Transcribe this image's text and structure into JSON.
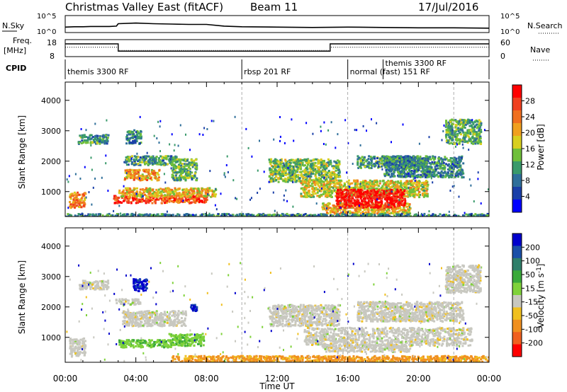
{
  "header": {
    "title": "Christmas Valley East (fitACF)",
    "beam": "Beam 11",
    "date": "17/Jul/2016"
  },
  "top_panels": {
    "nsky_label": "N.Sky",
    "nsky_ticks": [
      "10^5",
      "10^0"
    ],
    "nsearch_label": "N.Search",
    "nsearch_ticks": [
      "10^5",
      "10^0"
    ],
    "freq_label": [
      "Freq.",
      "[MHz]"
    ],
    "freq_ticks": [
      "18",
      "8"
    ],
    "nave_label": "Nave",
    "nave_ticks": [
      "60",
      "0"
    ],
    "cpid_label": "CPID",
    "cpid_segments": [
      {
        "label": "themis 3300 RF",
        "start_h": 0.0,
        "end_h": 10.0
      },
      {
        "label": "rbsp 201 RF",
        "start_h": 10.0,
        "end_h": 16.0
      },
      {
        "label": "normal (fast) 151 RF",
        "start_h": 16.0,
        "end_h": 18.0
      },
      {
        "label": "themis 3300 RF",
        "start_h": 18.0,
        "end_h": 22.0
      }
    ]
  },
  "chart_data": [
    {
      "type": "line",
      "panel": "noise",
      "series_label": "N.Sky",
      "x_hours": [
        0,
        0.5,
        1,
        1.5,
        2,
        2.5,
        2.9,
        3.0,
        4,
        5,
        6,
        7,
        8,
        9,
        10,
        12,
        14,
        16,
        18,
        20,
        22,
        24
      ],
      "log10_values": [
        1.6,
        1.7,
        1.7,
        1.8,
        1.8,
        1.8,
        1.9,
        2.6,
        2.8,
        2.6,
        2.5,
        2.4,
        2.4,
        1.9,
        1.7,
        1.6,
        1.5,
        1.6,
        1.5,
        1.4,
        1.4,
        1.3
      ],
      "ylim_log10": [
        0,
        5
      ]
    },
    {
      "type": "line",
      "panel": "frequency",
      "series_label": "Freq.",
      "unit": "MHz",
      "x_hours": [
        0,
        3.0,
        3.0,
        15.0,
        15.0,
        24
      ],
      "values": [
        15.5,
        15.5,
        11.2,
        11.2,
        15.5,
        15.5
      ],
      "ylim": [
        8,
        18
      ],
      "nave_x_hours": [
        0,
        3.0,
        3.0,
        15.0,
        15.0,
        24
      ],
      "nave_values": [
        33,
        33,
        22,
        22,
        33,
        33
      ],
      "nave_ylim": [
        0,
        60
      ]
    },
    {
      "type": "heatmap",
      "panel": "power",
      "title": "Power [dB]",
      "xlabel": "",
      "ylabel": "Slant Range [km]",
      "xlim_hours": [
        0,
        24
      ],
      "ylim_km": [
        180,
        4600
      ],
      "x_ticks": [
        "00:00",
        "04:00",
        "08:00",
        "12:00",
        "16:00",
        "20:00",
        "00:00"
      ],
      "y_ticks": [
        1000,
        2000,
        3000,
        4000
      ],
      "colorbar_ticks": [
        "4",
        "8",
        "12",
        "16",
        "20",
        "24",
        "28"
      ],
      "colorbar_colors": [
        "#0000ff",
        "#1a3fa8",
        "#2f6f9a",
        "#3a9a6b",
        "#6fbf3a",
        "#d8cf20",
        "#f0a020",
        "#f07020",
        "#f04020",
        "#ff0000"
      ],
      "regions": [
        {
          "t0": 0.2,
          "t1": 1.1,
          "r0": 500,
          "r1": 1000,
          "lvl": 0.7
        },
        {
          "t0": 0.7,
          "t1": 2.4,
          "r0": 2600,
          "r1": 2900,
          "lvl": 0.35
        },
        {
          "t0": 2.7,
          "t1": 8.0,
          "r0": 650,
          "r1": 900,
          "lvl": 0.85
        },
        {
          "t0": 3.0,
          "t1": 8.5,
          "r0": 850,
          "r1": 1150,
          "lvl": 0.6
        },
        {
          "t0": 3.3,
          "t1": 5.3,
          "r0": 1400,
          "r1": 1750,
          "lvl": 0.65
        },
        {
          "t0": 3.3,
          "t1": 6.3,
          "r0": 1900,
          "r1": 2200,
          "lvl": 0.35
        },
        {
          "t0": 3.4,
          "t1": 4.3,
          "r0": 2600,
          "r1": 3050,
          "lvl": 0.3
        },
        {
          "t0": 6.0,
          "t1": 7.4,
          "r0": 1400,
          "r1": 2100,
          "lvl": 0.4
        },
        {
          "t0": 11.5,
          "t1": 15.5,
          "r0": 1350,
          "r1": 2100,
          "lvl": 0.45
        },
        {
          "t0": 13.3,
          "t1": 20.5,
          "r0": 850,
          "r1": 1400,
          "lvl": 0.55
        },
        {
          "t0": 14.5,
          "t1": 19.5,
          "r0": 300,
          "r1": 650,
          "lvl": 0.6
        },
        {
          "t0": 15.3,
          "t1": 19.2,
          "r0": 500,
          "r1": 1100,
          "lvl": 0.97
        },
        {
          "t0": 16.5,
          "t1": 20.5,
          "r0": 1800,
          "r1": 2200,
          "lvl": 0.35
        },
        {
          "t0": 18.0,
          "t1": 22.5,
          "r0": 1500,
          "r1": 2200,
          "lvl": 0.3
        },
        {
          "t0": 21.5,
          "t1": 23.5,
          "r0": 2600,
          "r1": 3400,
          "lvl": 0.4
        },
        {
          "t0": 0.0,
          "t1": 24.0,
          "r0": 190,
          "r1": 300,
          "lvl": 0.3
        }
      ]
    },
    {
      "type": "heatmap",
      "panel": "velocity",
      "title": "Velocity [m s^-1]",
      "xlabel": "Time UT",
      "ylabel": "Slant Range [km]",
      "xlim_hours": [
        0,
        24
      ],
      "ylim_km": [
        180,
        4600
      ],
      "x_ticks": [
        "00:00",
        "04:00",
        "08:00",
        "12:00",
        "16:00",
        "20:00",
        "00:00"
      ],
      "y_ticks": [
        1000,
        2000,
        3000,
        4000
      ],
      "colorbar_ticks": [
        "200",
        "100",
        "50",
        "15",
        "-15",
        "-50",
        "-100",
        "-200"
      ],
      "colorbar_colors": [
        "#0000cc",
        "#1a4fa8",
        "#2f7f6a",
        "#3aaa3a",
        "#7fd23a",
        "#c8c8c0",
        "#f0c020",
        "#f09020",
        "#f06020",
        "#ff0000"
      ],
      "regions": [
        {
          "t0": 0.2,
          "t1": 1.1,
          "r0": 400,
          "r1": 1000,
          "cls": "gray"
        },
        {
          "t0": 0.7,
          "t1": 2.4,
          "r0": 2600,
          "r1": 2900,
          "cls": "gray"
        },
        {
          "t0": 2.8,
          "t1": 4.2,
          "r0": 2100,
          "r1": 2300,
          "cls": "gray"
        },
        {
          "t0": 3.2,
          "t1": 6.8,
          "r0": 1400,
          "r1": 1900,
          "cls": "gray"
        },
        {
          "t0": 3.8,
          "t1": 4.6,
          "r0": 2550,
          "r1": 2950,
          "cls": "blue"
        },
        {
          "t0": 3.0,
          "t1": 6.0,
          "r0": 700,
          "r1": 950,
          "cls": "green"
        },
        {
          "t0": 5.8,
          "t1": 7.8,
          "r0": 750,
          "r1": 1150,
          "cls": "green"
        },
        {
          "t0": 7.0,
          "t1": 7.4,
          "r0": 1900,
          "r1": 2100,
          "cls": "blue"
        },
        {
          "t0": 11.5,
          "t1": 15.5,
          "r0": 1400,
          "r1": 2100,
          "cls": "gray"
        },
        {
          "t0": 13.5,
          "t1": 23.0,
          "r0": 750,
          "r1": 1350,
          "cls": "gray"
        },
        {
          "t0": 14.5,
          "t1": 19.5,
          "r0": 550,
          "r1": 800,
          "cls": "gray"
        },
        {
          "t0": 16.5,
          "t1": 22.5,
          "r0": 1550,
          "r1": 2200,
          "cls": "gray"
        },
        {
          "t0": 21.5,
          "t1": 23.5,
          "r0": 2500,
          "r1": 3400,
          "cls": "gray"
        },
        {
          "t0": 6.0,
          "t1": 24.0,
          "r0": 190,
          "r1": 420,
          "cls": "orange"
        }
      ]
    }
  ]
}
